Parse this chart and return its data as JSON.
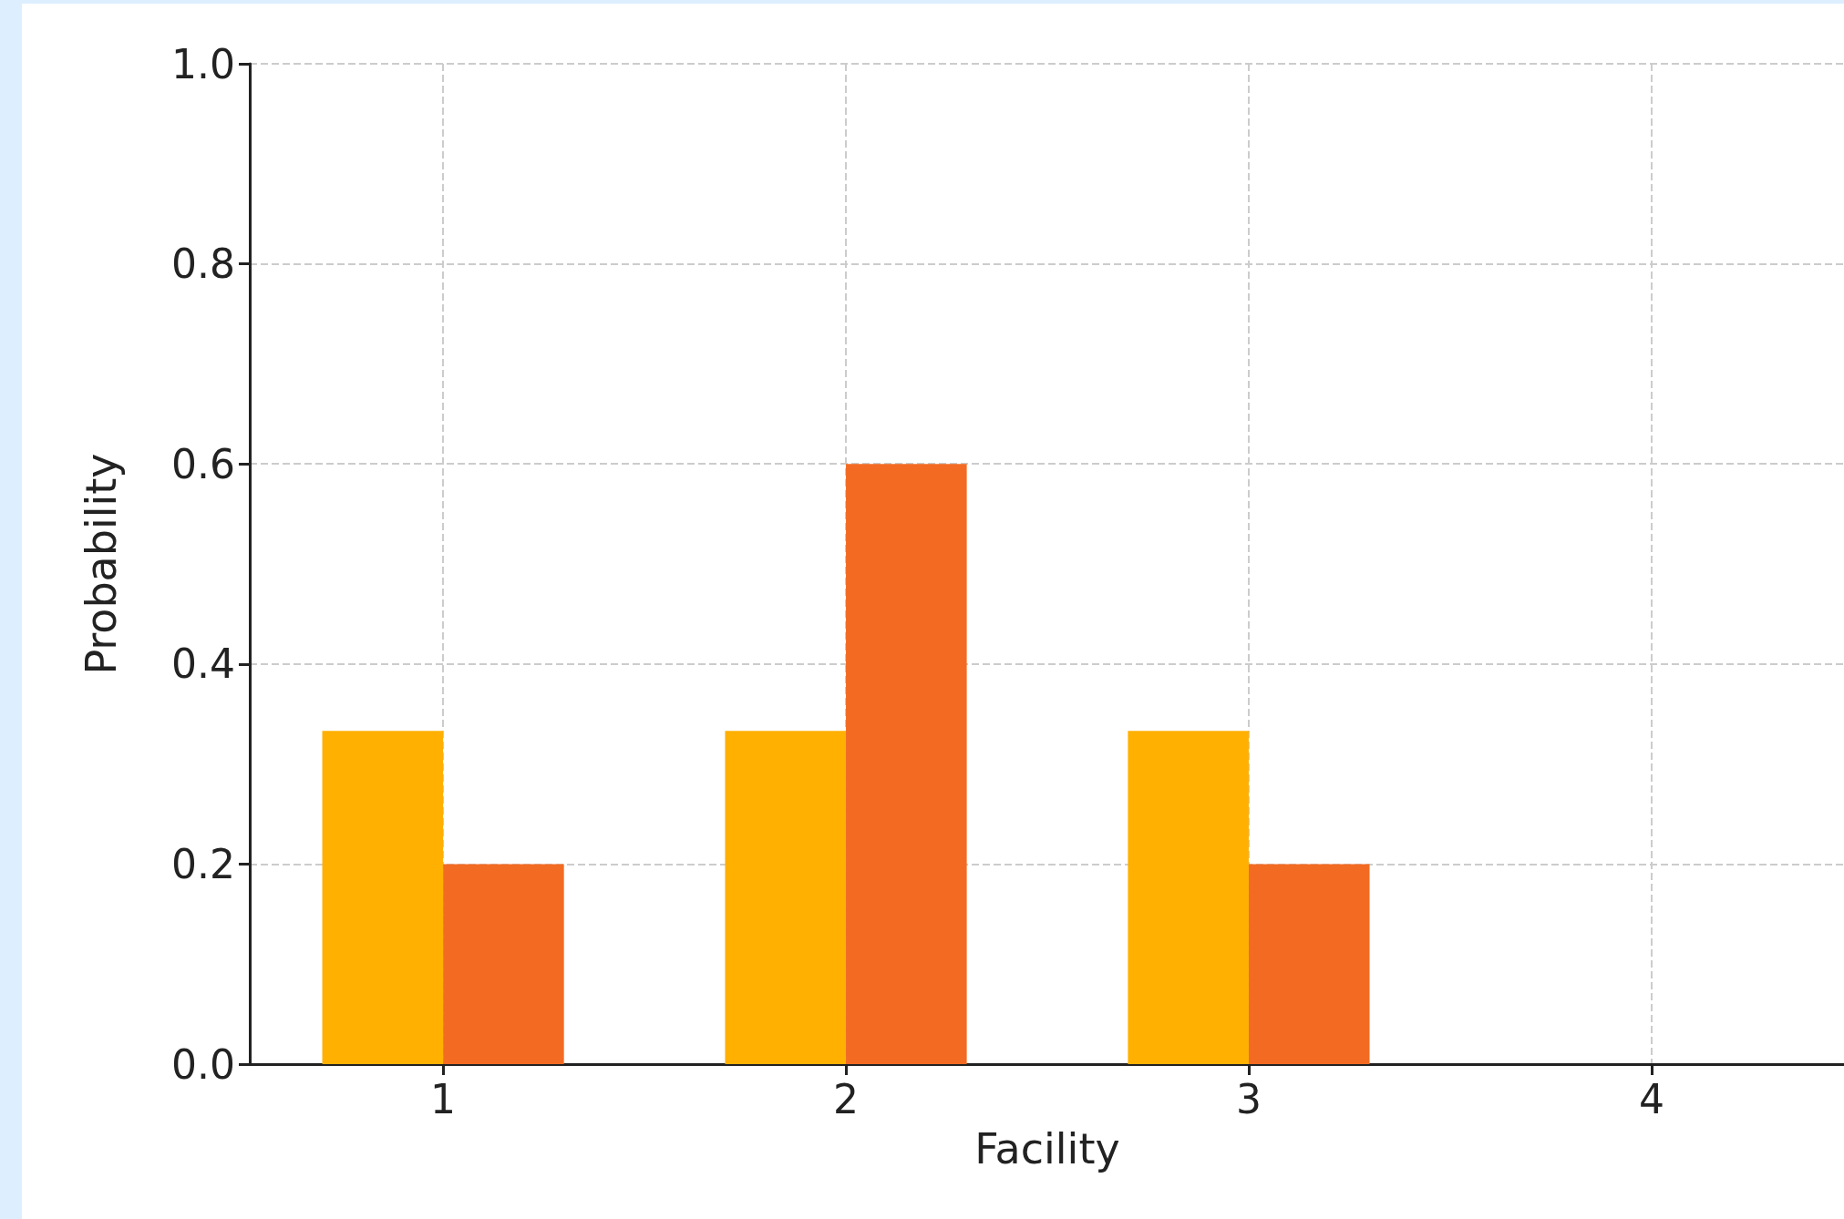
{
  "chart_data": {
    "type": "bar",
    "xlabel": "Facility",
    "ylabel": "Probability",
    "x": [
      1,
      2,
      3
    ],
    "series": [
      {
        "color": "#ffb000",
        "values": [
          0.333,
          0.333,
          0.333
        ]
      },
      {
        "color": "#f36b22",
        "values": [
          0.2,
          0.6,
          0.2
        ]
      }
    ],
    "xlim": [
      0.52,
      4.48
    ],
    "xticks": [
      1,
      2,
      3,
      4
    ],
    "ylim": [
      0,
      1
    ],
    "yticks": [
      {
        "value": 0,
        "label": "0.0"
      },
      {
        "value": 0.2,
        "label": "0.2"
      },
      {
        "value": 0.4,
        "label": "0.4"
      },
      {
        "value": 0.6,
        "label": "0.6"
      },
      {
        "value": 0.8,
        "label": "0.8"
      },
      {
        "value": 1,
        "label": "1.0"
      }
    ],
    "grid": true
  }
}
